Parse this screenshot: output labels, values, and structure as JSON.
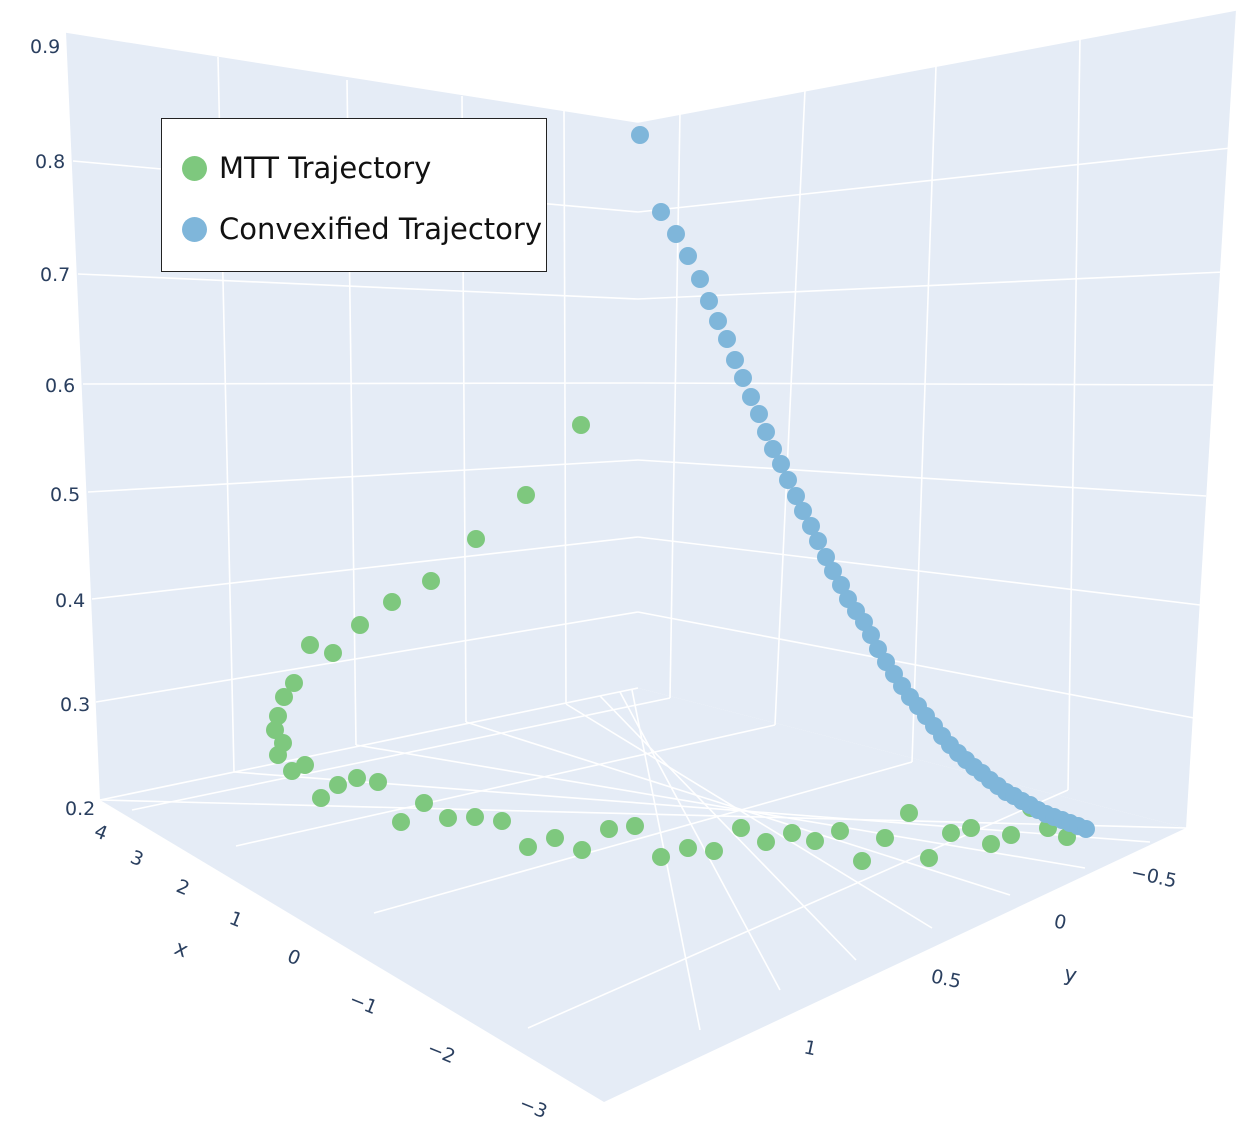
{
  "chart_data": {
    "type": "scatter",
    "title": "",
    "axes": {
      "x": {
        "title": "x",
        "ticks": [
          "4",
          "3",
          "2",
          "1",
          "0",
          "−1",
          "−2",
          "−3"
        ]
      },
      "y": {
        "title": "y",
        "ticks": [
          "−0.5",
          "0",
          "0.5",
          "1"
        ]
      },
      "z": {
        "title": "",
        "ticks": [
          "0.9",
          "0.8",
          "0.7",
          "0.6",
          "0.5",
          "0.4",
          "0.3",
          "0.2"
        ],
        "range": [
          0.2,
          0.9
        ]
      }
    },
    "grid": true,
    "legend_placement": "top-left",
    "series": [
      {
        "name": "MTT Trajectory",
        "color": "#7ec87e",
        "points": [
          [
            581,
            425
          ],
          [
            526,
            495
          ],
          [
            476,
            539
          ],
          [
            431,
            581
          ],
          [
            392,
            602
          ],
          [
            360,
            625
          ],
          [
            333,
            653
          ],
          [
            310,
            645
          ],
          [
            294,
            683
          ],
          [
            284,
            697
          ],
          [
            278,
            716
          ],
          [
            275,
            730
          ],
          [
            283,
            743
          ],
          [
            278,
            755
          ],
          [
            305,
            765
          ],
          [
            292,
            771
          ],
          [
            357,
            778
          ],
          [
            378,
            782
          ],
          [
            338,
            785
          ],
          [
            321,
            798
          ],
          [
            424,
            803
          ],
          [
            401,
            822
          ],
          [
            448,
            818
          ],
          [
            475,
            817
          ],
          [
            502,
            821
          ],
          [
            528,
            847
          ],
          [
            555,
            838
          ],
          [
            582,
            850
          ],
          [
            609,
            829
          ],
          [
            635,
            826
          ],
          [
            661,
            857
          ],
          [
            688,
            848
          ],
          [
            714,
            851
          ],
          [
            741,
            828
          ],
          [
            766,
            842
          ],
          [
            792,
            833
          ],
          [
            815,
            841
          ],
          [
            840,
            831
          ],
          [
            862,
            861
          ],
          [
            885,
            838
          ],
          [
            909,
            813
          ],
          [
            929,
            858
          ],
          [
            951,
            833
          ],
          [
            971,
            828
          ],
          [
            991,
            844
          ],
          [
            1011,
            835
          ],
          [
            1031,
            808
          ],
          [
            1048,
            828
          ],
          [
            1067,
            837
          ]
        ]
      },
      {
        "name": "Convexified Trajectory",
        "color": "#7fb6da",
        "points": [
          [
            640,
            135
          ],
          [
            661,
            212
          ],
          [
            676,
            234
          ],
          [
            688,
            256
          ],
          [
            700,
            279
          ],
          [
            709,
            301
          ],
          [
            718,
            321
          ],
          [
            727,
            339
          ],
          [
            735,
            360
          ],
          [
            743,
            378
          ],
          [
            751,
            397
          ],
          [
            759,
            414
          ],
          [
            766,
            432
          ],
          [
            773,
            449
          ],
          [
            781,
            464
          ],
          [
            788,
            480
          ],
          [
            796,
            496
          ],
          [
            803,
            511
          ],
          [
            811,
            526
          ],
          [
            818,
            541
          ],
          [
            826,
            557
          ],
          [
            833,
            571
          ],
          [
            841,
            585
          ],
          [
            848,
            599
          ],
          [
            856,
            611
          ],
          [
            864,
            622
          ],
          [
            871,
            635
          ],
          [
            878,
            649
          ],
          [
            886,
            662
          ],
          [
            894,
            674
          ],
          [
            902,
            686
          ],
          [
            910,
            697
          ],
          [
            918,
            706
          ],
          [
            926,
            716
          ],
          [
            934,
            726
          ],
          [
            942,
            736
          ],
          [
            950,
            745
          ],
          [
            958,
            753
          ],
          [
            966,
            760
          ],
          [
            974,
            767
          ],
          [
            982,
            773
          ],
          [
            990,
            780
          ],
          [
            998,
            786
          ],
          [
            1006,
            792
          ],
          [
            1014,
            796
          ],
          [
            1022,
            801
          ],
          [
            1030,
            805
          ],
          [
            1038,
            810
          ],
          [
            1046,
            814
          ],
          [
            1054,
            817
          ],
          [
            1062,
            820
          ],
          [
            1070,
            823
          ],
          [
            1078,
            826
          ],
          [
            1086,
            829
          ]
        ]
      }
    ]
  },
  "legend": {
    "items": [
      {
        "label": "MTT Trajectory",
        "color": "#7ec87e"
      },
      {
        "label": "Convexified Trajectory",
        "color": "#7fb6da"
      }
    ]
  }
}
